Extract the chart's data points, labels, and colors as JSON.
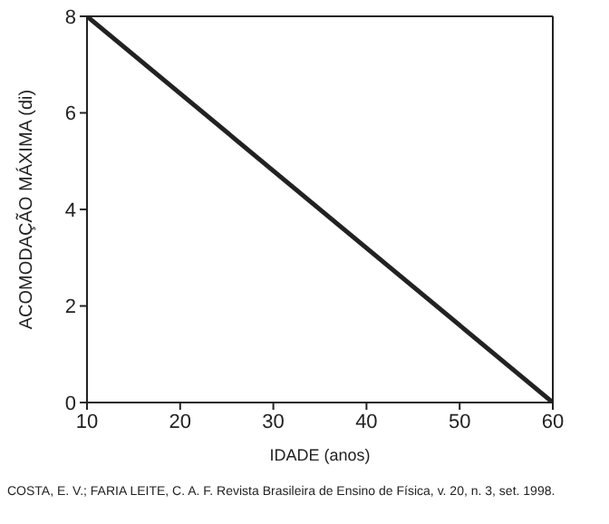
{
  "chart_data": {
    "type": "line",
    "xlabel": "IDADE (anos)",
    "ylabel": "ACOMODAÇÃO MÁXIMA (di)",
    "x": [
      10,
      60
    ],
    "series": [
      {
        "color": "#222222",
        "values": [
          8,
          0
        ]
      }
    ],
    "xlim": [
      10,
      60
    ],
    "xticks": [
      10,
      20,
      30,
      40,
      50,
      60
    ],
    "ylim": [
      0,
      8
    ],
    "yticks": [
      0,
      2,
      4,
      6,
      8
    ],
    "grid": false,
    "legend": false,
    "marker": "none",
    "line_style": "solid",
    "annotations": [
      "COSTA, E. V.; FARIA LEITE, C. A. F. Revista Brasileira de Ensino de Física, v. 20, n. 3, set. 1998."
    ]
  }
}
